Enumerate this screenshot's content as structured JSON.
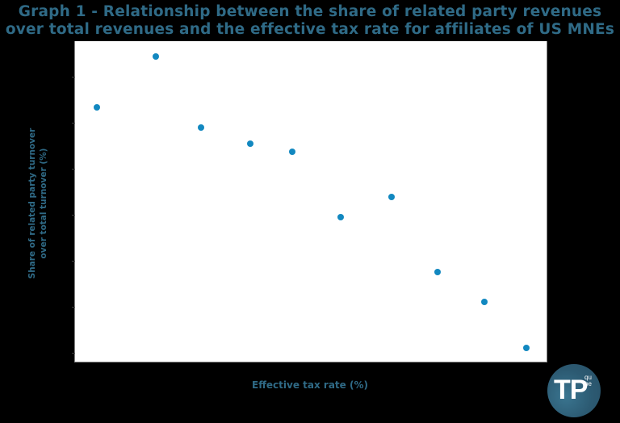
{
  "title": {
    "line1": "Graph 1 - Relationship between the share of related party revenues",
    "line2": "over total revenues and the effective tax rate for affiliates of US MNEs"
  },
  "axes": {
    "xlabel": "Effective tax rate (%)",
    "ylabel_line1": "Share of related party turnover",
    "ylabel_line2": "over total turnover (%)"
  },
  "logo": {
    "main": "TP",
    "sup_line1": "qu",
    "sup_line2": "be"
  },
  "colors": {
    "title": "#2f6a86",
    "point": "#1288c0",
    "background": "#000000",
    "plot_bg": "#ffffff",
    "logo_bg": "#2c5a72"
  },
  "chart_data": {
    "type": "scatter",
    "title": "Graph 1 - Relationship between the share of related party revenues over total revenues and the effective tax rate for affiliates of US MNEs",
    "xlabel": "Effective tax rate (%)",
    "ylabel": "Share of related party turnover over total turnover (%)",
    "x_tick_labels": [],
    "y_tick_labels": [],
    "y_tick_count": 7,
    "grid": false,
    "legend": null,
    "note": "Axes have no numeric tick labels; values below are normalized positions (0-100) within the plot area.",
    "xlim": [
      0,
      100
    ],
    "ylim": [
      0,
      100
    ],
    "points": [
      {
        "x": 4.6,
        "y": 79.4
      },
      {
        "x": 17.1,
        "y": 95.2
      },
      {
        "x": 26.7,
        "y": 73.0
      },
      {
        "x": 37.2,
        "y": 68.0
      },
      {
        "x": 46.1,
        "y": 65.5
      },
      {
        "x": 56.3,
        "y": 45.1
      },
      {
        "x": 67.1,
        "y": 51.4
      },
      {
        "x": 76.9,
        "y": 28.0
      },
      {
        "x": 86.8,
        "y": 18.6
      },
      {
        "x": 95.7,
        "y": 4.3
      }
    ]
  }
}
